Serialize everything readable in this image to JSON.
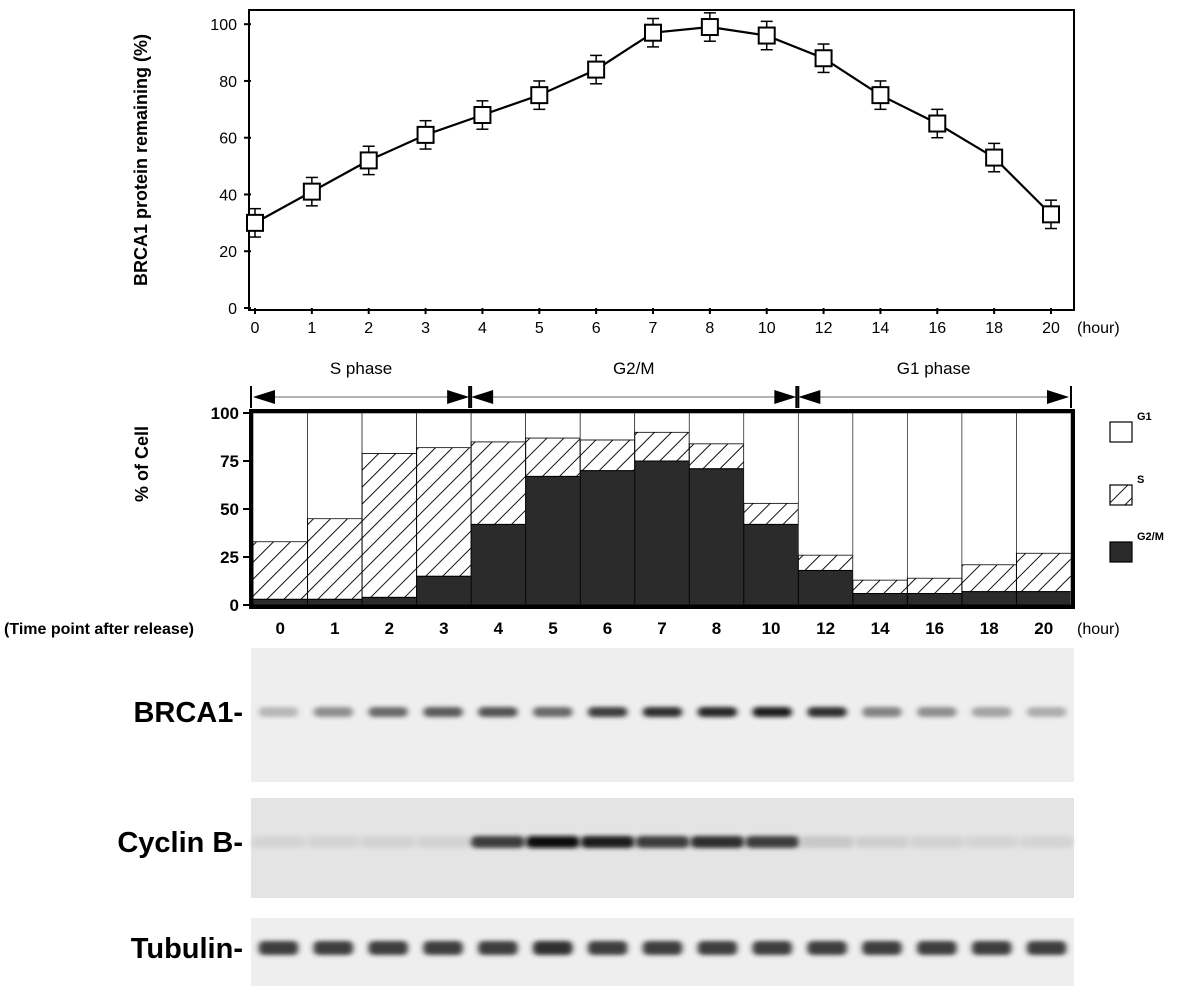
{
  "chart_data": [
    {
      "type": "line",
      "ylabel": "BRCA1 protein remaining (%)",
      "x_unit": "(hour)",
      "categories": [
        "0",
        "1",
        "2",
        "3",
        "4",
        "5",
        "6",
        "7",
        "8",
        "10",
        "12",
        "14",
        "16",
        "18",
        "20"
      ],
      "values": [
        30,
        41,
        52,
        61,
        68,
        75,
        84,
        97,
        99,
        96,
        88,
        75,
        65,
        53,
        33
      ],
      "errors": [
        5,
        5,
        5,
        5,
        5,
        5,
        5,
        5,
        5,
        5,
        5,
        5,
        5,
        5,
        5
      ],
      "yticks": [
        "0",
        "20",
        "40",
        "60",
        "80",
        "100"
      ],
      "ylim": [
        0,
        105
      ],
      "marker": "open-square",
      "grid": false
    },
    {
      "type": "bar",
      "stacked": true,
      "ylabel": "% of Cell",
      "xlabel": "(Time point after release)",
      "x_unit": "(hour)",
      "categories": [
        "0",
        "1",
        "2",
        "3",
        "4",
        "5",
        "6",
        "7",
        "8",
        "10",
        "12",
        "14",
        "16",
        "18",
        "20"
      ],
      "yticks": [
        "0",
        "25",
        "50",
        "75",
        "100"
      ],
      "ylim": [
        0,
        100
      ],
      "legend_position": "right",
      "series": [
        {
          "name": "G2/M",
          "values": [
            3,
            3,
            4,
            15,
            42,
            67,
            70,
            75,
            71,
            42,
            18,
            6,
            6,
            7,
            7
          ]
        },
        {
          "name": "S",
          "values": [
            30,
            42,
            75,
            67,
            43,
            20,
            16,
            15,
            13,
            11,
            8,
            7,
            8,
            14,
            20
          ]
        },
        {
          "name": "G1",
          "values": [
            67,
            55,
            21,
            18,
            15,
            13,
            14,
            10,
            16,
            47,
            74,
            87,
            86,
            79,
            73
          ]
        }
      ],
      "phases": [
        {
          "label": "S phase",
          "from": "0",
          "to": "3"
        },
        {
          "label": "G2/M",
          "from": "4",
          "to": "10"
        },
        {
          "label": "G1 phase",
          "from": "12",
          "to": "20"
        }
      ]
    },
    {
      "type": "blot",
      "lanes": [
        "0",
        "1",
        "2",
        "3",
        "4",
        "5",
        "6",
        "7",
        "8",
        "10",
        "12",
        "14",
        "16",
        "18",
        "20"
      ],
      "rows": [
        {
          "label": "BRCA1-",
          "intensity": [
            0.35,
            0.55,
            0.7,
            0.75,
            0.78,
            0.7,
            0.85,
            0.9,
            0.92,
            0.95,
            0.9,
            0.6,
            0.55,
            0.45,
            0.4
          ]
        },
        {
          "label": "Cyclin B-",
          "intensity": [
            0.1,
            0.1,
            0.12,
            0.12,
            0.85,
            1.0,
            0.95,
            0.85,
            0.9,
            0.85,
            0.2,
            0.15,
            0.12,
            0.1,
            0.1
          ]
        },
        {
          "label": "Tubulin-",
          "intensity": [
            0.85,
            0.85,
            0.85,
            0.85,
            0.85,
            0.9,
            0.85,
            0.85,
            0.85,
            0.85,
            0.85,
            0.85,
            0.85,
            0.85,
            0.85
          ]
        }
      ]
    }
  ]
}
